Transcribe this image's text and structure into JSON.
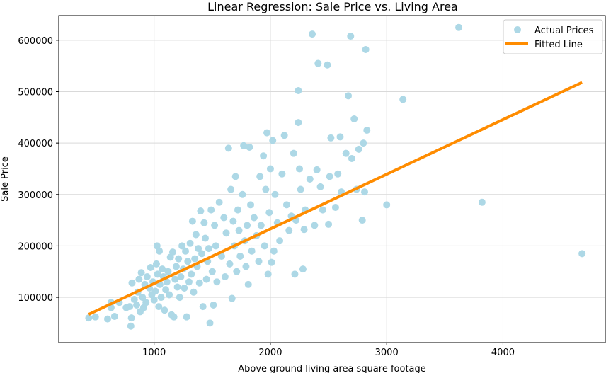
{
  "chart_data": {
    "type": "scatter",
    "title": "Linear Regression: Sale Price vs. Living Area",
    "xlabel": "Above ground living area square footage",
    "ylabel": "Sale Price",
    "xlim": [
      180,
      4880
    ],
    "ylim": [
      12000,
      648000
    ],
    "xticks": [
      1000,
      2000,
      3000,
      4000
    ],
    "yticks": [
      100000,
      200000,
      300000,
      400000,
      500000,
      600000
    ],
    "grid": true,
    "legend_position": "top-right",
    "colors": {
      "points": "#add8e6",
      "line": "#ff8c00",
      "grid": "#d9d9d9"
    },
    "series": [
      {
        "name": "Actual Prices",
        "kind": "scatter",
        "points": [
          [
            438,
            60000
          ],
          [
            495,
            62000
          ],
          [
            600,
            58000
          ],
          [
            630,
            90000
          ],
          [
            630,
            80000
          ],
          [
            660,
            63000
          ],
          [
            700,
            90000
          ],
          [
            760,
            80000
          ],
          [
            790,
            82000
          ],
          [
            800,
            44000
          ],
          [
            805,
            60000
          ],
          [
            810,
            128000
          ],
          [
            830,
            96000
          ],
          [
            850,
            85000
          ],
          [
            860,
            110000
          ],
          [
            870,
            135000
          ],
          [
            880,
            72000
          ],
          [
            890,
            148000
          ],
          [
            900,
            100000
          ],
          [
            910,
            80000
          ],
          [
            920,
            125000
          ],
          [
            930,
            90000
          ],
          [
            940,
            140000
          ],
          [
            960,
            118000
          ],
          [
            970,
            158000
          ],
          [
            980,
            105000
          ],
          [
            990,
            130000
          ],
          [
            1000,
            95000
          ],
          [
            1010,
            112000
          ],
          [
            1020,
            165000
          ],
          [
            1025,
            200000
          ],
          [
            1030,
            145000
          ],
          [
            1040,
            82000
          ],
          [
            1045,
            190000
          ],
          [
            1050,
            125000
          ],
          [
            1060,
            100000
          ],
          [
            1070,
            155000
          ],
          [
            1080,
            140000
          ],
          [
            1090,
            75000
          ],
          [
            1100,
            115000
          ],
          [
            1110,
            130000
          ],
          [
            1120,
            150000
          ],
          [
            1130,
            105000
          ],
          [
            1140,
            178000
          ],
          [
            1150,
            66000
          ],
          [
            1160,
            188000
          ],
          [
            1170,
            62000
          ],
          [
            1180,
            135000
          ],
          [
            1190,
            160000
          ],
          [
            1200,
            120000
          ],
          [
            1210,
            175000
          ],
          [
            1220,
            100000
          ],
          [
            1230,
            140000
          ],
          [
            1240,
            200000
          ],
          [
            1250,
            155000
          ],
          [
            1260,
            118000
          ],
          [
            1270,
            190000
          ],
          [
            1280,
            62000
          ],
          [
            1290,
            170000
          ],
          [
            1300,
            130000
          ],
          [
            1310,
            205000
          ],
          [
            1320,
            145000
          ],
          [
            1330,
            248000
          ],
          [
            1340,
            110000
          ],
          [
            1350,
            175000
          ],
          [
            1360,
            222000
          ],
          [
            1370,
            160000
          ],
          [
            1380,
            195000
          ],
          [
            1390,
            128000
          ],
          [
            1400,
            268000
          ],
          [
            1410,
            185000
          ],
          [
            1420,
            82000
          ],
          [
            1430,
            245000
          ],
          [
            1440,
            215000
          ],
          [
            1450,
            135000
          ],
          [
            1460,
            170000
          ],
          [
            1470,
            195000
          ],
          [
            1480,
            50000
          ],
          [
            1490,
            270000
          ],
          [
            1500,
            150000
          ],
          [
            1510,
            85000
          ],
          [
            1520,
            240000
          ],
          [
            1530,
            200000
          ],
          [
            1540,
            130000
          ],
          [
            1560,
            285000
          ],
          [
            1580,
            180000
          ],
          [
            1600,
            255000
          ],
          [
            1610,
            140000
          ],
          [
            1620,
            225000
          ],
          [
            1640,
            390000
          ],
          [
            1650,
            165000
          ],
          [
            1660,
            310000
          ],
          [
            1670,
            98000
          ],
          [
            1680,
            248000
          ],
          [
            1690,
            200000
          ],
          [
            1700,
            335000
          ],
          [
            1710,
            150000
          ],
          [
            1720,
            270000
          ],
          [
            1730,
            230000
          ],
          [
            1740,
            180000
          ],
          [
            1760,
            300000
          ],
          [
            1770,
            395000
          ],
          [
            1780,
            210000
          ],
          [
            1790,
            160000
          ],
          [
            1800,
            240000
          ],
          [
            1810,
            125000
          ],
          [
            1820,
            392000
          ],
          [
            1830,
            280000
          ],
          [
            1840,
            190000
          ],
          [
            1860,
            255000
          ],
          [
            1880,
            220000
          ],
          [
            1900,
            170000
          ],
          [
            1910,
            335000
          ],
          [
            1920,
            240000
          ],
          [
            1940,
            375000
          ],
          [
            1950,
            200000
          ],
          [
            1960,
            310000
          ],
          [
            1970,
            420000
          ],
          [
            1980,
            145000
          ],
          [
            1990,
            265000
          ],
          [
            2000,
            350000
          ],
          [
            2010,
            168000
          ],
          [
            2020,
            405000
          ],
          [
            2030,
            190000
          ],
          [
            2040,
            300000
          ],
          [
            2060,
            245000
          ],
          [
            2080,
            210000
          ],
          [
            2100,
            340000
          ],
          [
            2120,
            415000
          ],
          [
            2140,
            280000
          ],
          [
            2160,
            230000
          ],
          [
            2180,
            258000
          ],
          [
            2200,
            380000
          ],
          [
            2210,
            145000
          ],
          [
            2220,
            250000
          ],
          [
            2240,
            440000
          ],
          [
            2240,
            502000
          ],
          [
            2250,
            350000
          ],
          [
            2260,
            310000
          ],
          [
            2280,
            155000
          ],
          [
            2290,
            232000
          ],
          [
            2300,
            270000
          ],
          [
            2340,
            330000
          ],
          [
            2360,
            612000
          ],
          [
            2380,
            240000
          ],
          [
            2400,
            348000
          ],
          [
            2410,
            555000
          ],
          [
            2430,
            315000
          ],
          [
            2450,
            270000
          ],
          [
            2490,
            552000
          ],
          [
            2500,
            242000
          ],
          [
            2510,
            335000
          ],
          [
            2520,
            410000
          ],
          [
            2560,
            275000
          ],
          [
            2580,
            340000
          ],
          [
            2600,
            412000
          ],
          [
            2610,
            305000
          ],
          [
            2650,
            380000
          ],
          [
            2670,
            492000
          ],
          [
            2690,
            608000
          ],
          [
            2700,
            370000
          ],
          [
            2720,
            447000
          ],
          [
            2740,
            310000
          ],
          [
            2760,
            388000
          ],
          [
            2790,
            250000
          ],
          [
            2800,
            400000
          ],
          [
            2810,
            305000
          ],
          [
            2820,
            582000
          ],
          [
            2830,
            425000
          ],
          [
            3000,
            280000
          ],
          [
            3140,
            485000
          ],
          [
            3620,
            625000
          ],
          [
            3820,
            285000
          ],
          [
            4680,
            185000
          ]
        ]
      },
      {
        "name": "Fitted Line",
        "kind": "line",
        "points": [
          [
            438,
            67000
          ],
          [
            4680,
            518000
          ]
        ]
      }
    ]
  }
}
